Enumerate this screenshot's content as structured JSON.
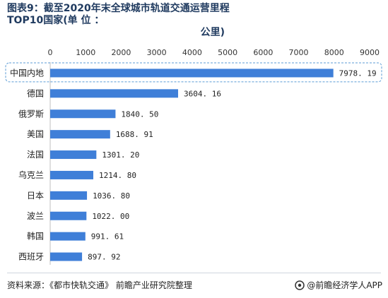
{
  "title": {
    "line1": "图表9：截至2020年末全球城市轨道交通运营里程TOP10国家(单 位 ：",
    "line2": "公里)"
  },
  "source_text": "资料来源：《都市快轨交通》 前瞻产业研究院整理",
  "brand_text": "@前瞻经济学人APP",
  "colors": {
    "bar": "#3f7fd8",
    "highlight_border": "#5b9bd5",
    "title": "#1f3a5f"
  },
  "chart_data": {
    "type": "bar",
    "orientation": "horizontal",
    "categories": [
      "中国内地",
      "德国",
      "俄罗斯",
      "美国",
      "法国",
      "乌克兰",
      "日本",
      "波兰",
      "韩国",
      "西班牙"
    ],
    "values": [
      7978.19,
      3604.16,
      1840.5,
      1688.91,
      1301.2,
      1214.8,
      1036.8,
      1022.0,
      991.61,
      897.92
    ],
    "value_labels": [
      "7978. 19",
      "3604. 16",
      "1840. 50",
      "1688. 91",
      "1301. 20",
      "1214. 80",
      "1036. 80",
      "1022. 00",
      "991. 61",
      "897. 92"
    ],
    "xlim": [
      0,
      9000
    ],
    "xticks": [
      0,
      1000,
      2000,
      3000,
      4000,
      5000,
      6000,
      7000,
      8000,
      9000
    ],
    "axis_position": "top",
    "highlighted_category": "中国内地",
    "grid": false
  }
}
